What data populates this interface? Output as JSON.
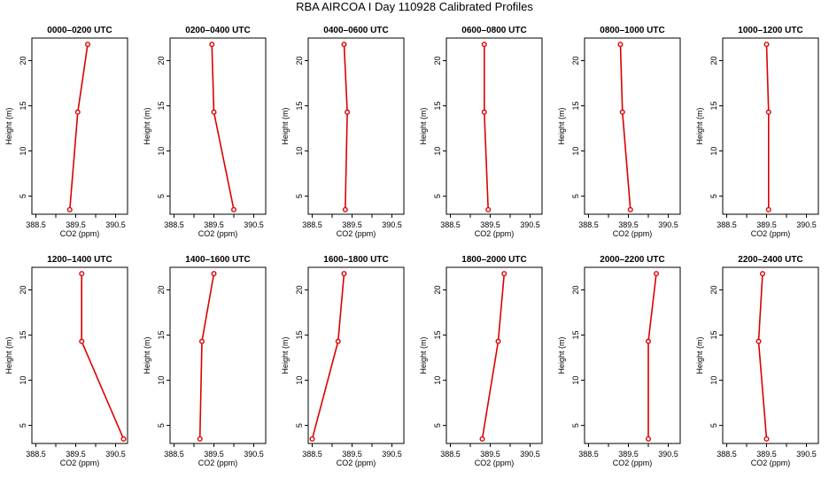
{
  "title": "RBA AIRCOA I  Day 110928  Calibrated Profiles",
  "chart_data": [
    {
      "type": "line",
      "title": "0000–0200 UTC",
      "xlabel": "CO2 (ppm)",
      "ylabel": "Height (m)",
      "xlim": [
        388.4,
        390.8
      ],
      "ylim": [
        3,
        22.5
      ],
      "xticks": [
        388.5,
        389,
        389.5,
        390,
        390.5
      ],
      "xticklabels": [
        "388.5",
        "",
        "389.5",
        "",
        "390.5"
      ],
      "yticks": [
        5,
        10,
        15,
        20
      ],
      "x": [
        389.8,
        389.55,
        389.35
      ],
      "y": [
        21.8,
        14.3,
        3.5
      ]
    },
    {
      "type": "line",
      "title": "0200–0400 UTC",
      "xlabel": "CO2 (ppm)",
      "ylabel": "Height (m)",
      "xlim": [
        388.4,
        390.8
      ],
      "ylim": [
        3,
        22.5
      ],
      "xticks": [
        388.5,
        389,
        389.5,
        390,
        390.5
      ],
      "xticklabels": [
        "388.5",
        "",
        "389.5",
        "",
        "390.5"
      ],
      "yticks": [
        5,
        10,
        15,
        20
      ],
      "x": [
        389.45,
        389.5,
        390.0
      ],
      "y": [
        21.8,
        14.3,
        3.5
      ]
    },
    {
      "type": "line",
      "title": "0400–0600 UTC",
      "xlabel": "CO2 (ppm)",
      "ylabel": "Height (m)",
      "xlim": [
        388.4,
        390.8
      ],
      "ylim": [
        3,
        22.5
      ],
      "xticks": [
        388.5,
        389,
        389.5,
        390,
        390.5
      ],
      "xticklabels": [
        "388.5",
        "",
        "389.5",
        "",
        "390.5"
      ],
      "yticks": [
        5,
        10,
        15,
        20
      ],
      "x": [
        389.3,
        389.38,
        389.33
      ],
      "y": [
        21.8,
        14.3,
        3.5
      ]
    },
    {
      "type": "line",
      "title": "0600–0800 UTC",
      "xlabel": "CO2 (ppm)",
      "ylabel": "Height (m)",
      "xlim": [
        388.4,
        390.8
      ],
      "ylim": [
        3,
        22.5
      ],
      "xticks": [
        388.5,
        389,
        389.5,
        390,
        390.5
      ],
      "xticklabels": [
        "388.5",
        "",
        "389.5",
        "",
        "390.5"
      ],
      "yticks": [
        5,
        10,
        15,
        20
      ],
      "x": [
        389.35,
        389.35,
        389.45
      ],
      "y": [
        21.8,
        14.3,
        3.5
      ]
    },
    {
      "type": "line",
      "title": "0800–1000 UTC",
      "xlabel": "CO2 (ppm)",
      "ylabel": "Height (m)",
      "xlim": [
        388.4,
        390.8
      ],
      "ylim": [
        3,
        22.5
      ],
      "xticks": [
        388.5,
        389,
        389.5,
        390,
        390.5
      ],
      "xticklabels": [
        "388.5",
        "",
        "389.5",
        "",
        "390.5"
      ],
      "yticks": [
        5,
        10,
        15,
        20
      ],
      "x": [
        389.3,
        389.35,
        389.55
      ],
      "y": [
        21.8,
        14.3,
        3.5
      ]
    },
    {
      "type": "line",
      "title": "1000–1200 UTC",
      "xlabel": "CO2 (ppm)",
      "ylabel": "Height (m)",
      "xlim": [
        388.4,
        390.8
      ],
      "ylim": [
        3,
        22.5
      ],
      "xticks": [
        388.5,
        389,
        389.5,
        390,
        390.5
      ],
      "xticklabels": [
        "388.5",
        "",
        "389.5",
        "",
        "390.5"
      ],
      "yticks": [
        5,
        10,
        15,
        20
      ],
      "x": [
        389.5,
        389.55,
        389.55
      ],
      "y": [
        21.8,
        14.3,
        3.5
      ]
    },
    {
      "type": "line",
      "title": "1200–1400 UTC",
      "xlabel": "CO2 (ppm)",
      "ylabel": "Height (m)",
      "xlim": [
        388.4,
        390.8
      ],
      "ylim": [
        3,
        22.5
      ],
      "xticks": [
        388.5,
        389,
        389.5,
        390,
        390.5
      ],
      "xticklabels": [
        "388.5",
        "",
        "389.5",
        "",
        "390.5"
      ],
      "yticks": [
        5,
        10,
        15,
        20
      ],
      "x": [
        389.65,
        389.65,
        390.7
      ],
      "y": [
        21.8,
        14.3,
        3.5
      ]
    },
    {
      "type": "line",
      "title": "1400–1600 UTC",
      "xlabel": "CO2 (ppm)",
      "ylabel": "Height (m)",
      "xlim": [
        388.4,
        390.8
      ],
      "ylim": [
        3,
        22.5
      ],
      "xticks": [
        388.5,
        389,
        389.5,
        390,
        390.5
      ],
      "xticklabels": [
        "388.5",
        "",
        "389.5",
        "",
        "390.5"
      ],
      "yticks": [
        5,
        10,
        15,
        20
      ],
      "x": [
        389.5,
        389.2,
        389.15
      ],
      "y": [
        21.8,
        14.3,
        3.5
      ]
    },
    {
      "type": "line",
      "title": "1600–1800 UTC",
      "xlabel": "CO2 (ppm)",
      "ylabel": "Height (m)",
      "xlim": [
        388.4,
        390.8
      ],
      "ylim": [
        3,
        22.5
      ],
      "xticks": [
        388.5,
        389,
        389.5,
        390,
        390.5
      ],
      "xticklabels": [
        "388.5",
        "",
        "389.5",
        "",
        "390.5"
      ],
      "yticks": [
        5,
        10,
        15,
        20
      ],
      "x": [
        389.3,
        389.15,
        388.5
      ],
      "y": [
        21.8,
        14.3,
        3.5
      ]
    },
    {
      "type": "line",
      "title": "1800–2000 UTC",
      "xlabel": "CO2 (ppm)",
      "ylabel": "Height (m)",
      "xlim": [
        388.4,
        390.8
      ],
      "ylim": [
        3,
        22.5
      ],
      "xticks": [
        388.5,
        389,
        389.5,
        390,
        390.5
      ],
      "xticklabels": [
        "388.5",
        "",
        "389.5",
        "",
        "390.5"
      ],
      "yticks": [
        5,
        10,
        15,
        20
      ],
      "x": [
        389.85,
        389.7,
        389.3
      ],
      "y": [
        21.8,
        14.3,
        3.5
      ]
    },
    {
      "type": "line",
      "title": "2000–2200 UTC",
      "xlabel": "CO2 (ppm)",
      "ylabel": "Height (m)",
      "xlim": [
        388.4,
        390.8
      ],
      "ylim": [
        3,
        22.5
      ],
      "xticks": [
        388.5,
        389,
        389.5,
        390,
        390.5
      ],
      "xticklabels": [
        "388.5",
        "",
        "389.5",
        "",
        "390.5"
      ],
      "yticks": [
        5,
        10,
        15,
        20
      ],
      "x": [
        390.2,
        390.0,
        390.0
      ],
      "y": [
        21.8,
        14.3,
        3.5
      ]
    },
    {
      "type": "line",
      "title": "2200–2400 UTC",
      "xlabel": "CO2 (ppm)",
      "ylabel": "Height (m)",
      "xlim": [
        388.4,
        390.8
      ],
      "ylim": [
        3,
        22.5
      ],
      "xticks": [
        388.5,
        389,
        389.5,
        390,
        390.5
      ],
      "xticklabels": [
        "388.5",
        "",
        "389.5",
        "",
        "390.5"
      ],
      "yticks": [
        5,
        10,
        15,
        20
      ],
      "x": [
        389.4,
        389.3,
        389.5
      ],
      "y": [
        21.8,
        14.3,
        3.5
      ]
    }
  ],
  "series_color": "#dd0000"
}
